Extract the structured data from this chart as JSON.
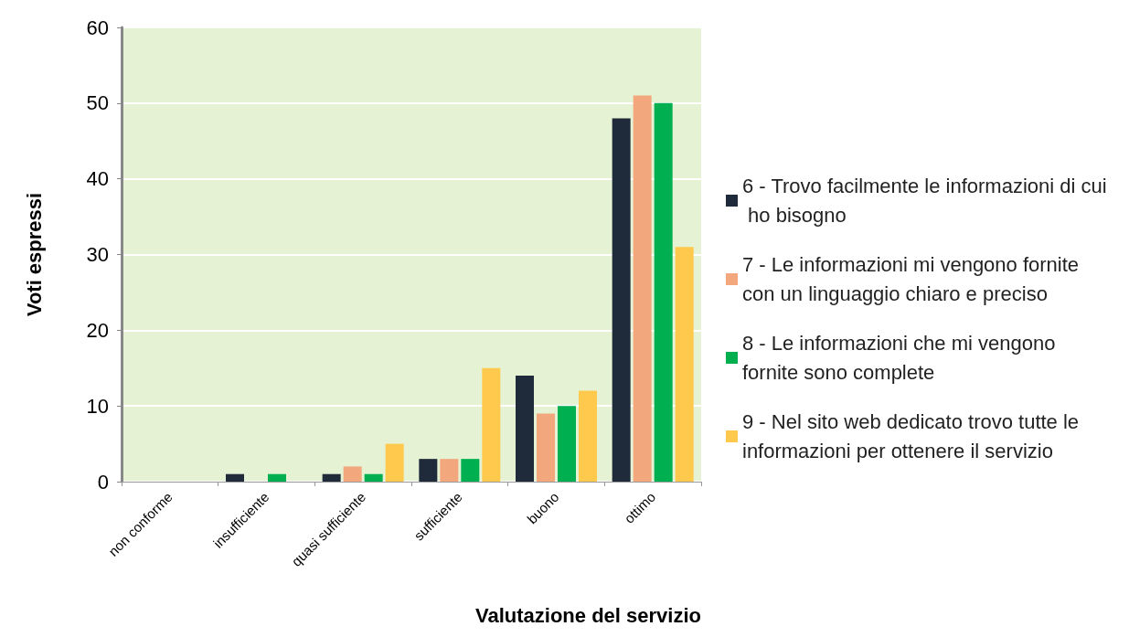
{
  "chart_data": {
    "type": "bar",
    "xlabel": "Valutazione del servizio",
    "ylabel": "Voti espressi",
    "categories": [
      "non conforme",
      "insufficiente",
      "quasi sufficiente",
      "sufficiente",
      "buono",
      "ottimo"
    ],
    "series": [
      {
        "name": "6 - Trovo facilmente le informazioni di cui ho bisogno",
        "color": "#1f2a3a",
        "values": [
          0,
          1,
          1,
          3,
          14,
          48
        ]
      },
      {
        "name": "7 - Le informazioni mi vengono fornite con un linguaggio chiaro e preciso",
        "color": "#f2a77c",
        "values": [
          0,
          0,
          2,
          3,
          9,
          51
        ]
      },
      {
        "name": "8 - Le informazioni che mi vengono fornite sono complete",
        "color": "#00b050",
        "values": [
          0,
          1,
          1,
          3,
          10,
          50
        ]
      },
      {
        "name": "9 - Nel sito web dedicato trovo tutte le informazioni per ottenere il servizio",
        "color": "#ffc94d",
        "values": [
          0,
          0,
          5,
          15,
          12,
          31
        ]
      }
    ],
    "ylim": [
      0,
      60
    ],
    "yticks": [
      0,
      10,
      20,
      30,
      40,
      50,
      60
    ],
    "grid": "y",
    "legend": "right"
  }
}
